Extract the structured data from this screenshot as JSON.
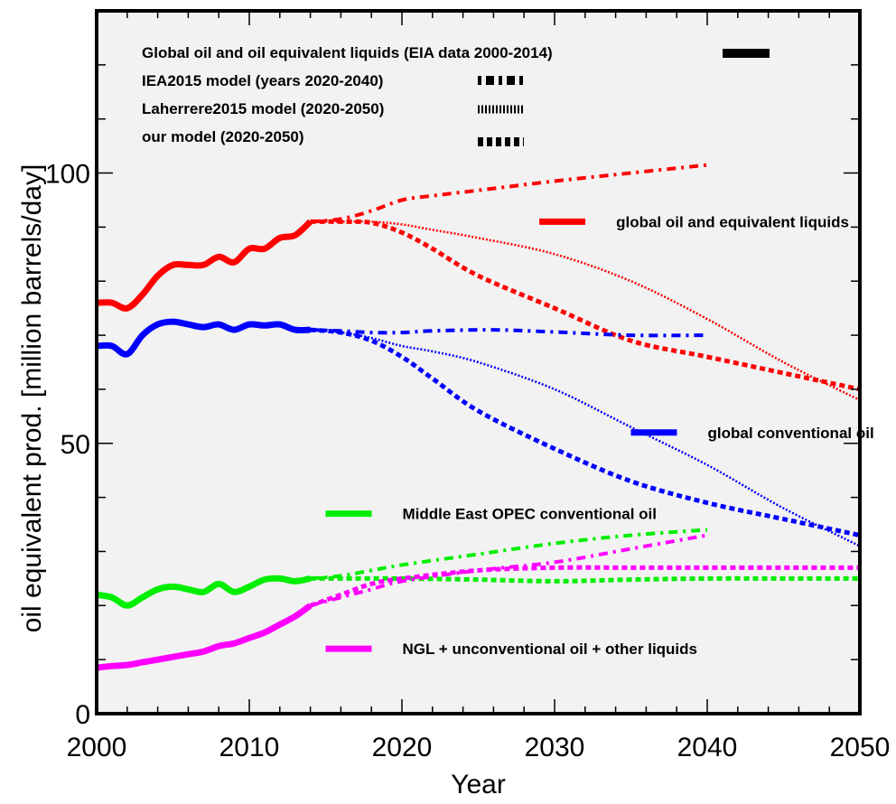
{
  "chart_data": {
    "type": "line",
    "title": "",
    "xlabel": "Year",
    "ylabel": "oil equivalent prod. [million barrels/day]",
    "xlim": [
      2000,
      2050
    ],
    "ylim": [
      0,
      130
    ],
    "x_ticks": [
      2000,
      2010,
      2020,
      2030,
      2040,
      2050
    ],
    "y_ticks": [
      0,
      50,
      100
    ],
    "grid": false,
    "background_color": "#f2f2f2",
    "legend": {
      "placement": "top",
      "entries": [
        {
          "label": "Global oil and oil equivalent liquids (EIA data 2000-2014)",
          "style": "solid"
        },
        {
          "label": "IEA2015 model (years 2020-2040)",
          "style": "dashdot"
        },
        {
          "label": "Laherrere2015 model (2020-2050)",
          "style": "dotted"
        },
        {
          "label": "our model (2020-2050)",
          "style": "dashed"
        }
      ]
    },
    "annotations": [
      {
        "text": "global oil and equivalent liquids",
        "color": "#ff0000",
        "x": 2029,
        "y": 91
      },
      {
        "text": "global conventional oil",
        "color": "#0000ff",
        "x": 2035,
        "y": 52
      },
      {
        "text": "Middle East OPEC conventional oil",
        "color": "#00ee00",
        "x": 2015,
        "y": 37
      },
      {
        "text": "NGL + unconventional oil + other liquids",
        "color": "#ff00ff",
        "x": 2015,
        "y": 12
      }
    ],
    "series": [
      {
        "group": "global oil and equivalent liquids",
        "model": "Global oil and oil equivalent liquids (EIA data 2000-2014)",
        "style": "solid",
        "color": "#ff0000",
        "x": [
          2000,
          2001,
          2002,
          2003,
          2004,
          2005,
          2006,
          2007,
          2008,
          2009,
          2010,
          2011,
          2012,
          2013,
          2014
        ],
        "y": [
          76,
          76,
          75,
          77.5,
          81,
          83,
          83,
          83,
          84.5,
          83.5,
          86,
          86,
          88,
          88.5,
          91
        ]
      },
      {
        "group": "global oil and equivalent liquids",
        "model": "IEA2015 model (years 2020-2040)",
        "style": "dashdot",
        "color": "#ff0000",
        "x": [
          2014,
          2016,
          2018,
          2020,
          2022,
          2025,
          2030,
          2035,
          2040
        ],
        "y": [
          91,
          91.5,
          93,
          95,
          95.8,
          96.8,
          98.5,
          100,
          101.5
        ]
      },
      {
        "group": "global oil and equivalent liquids",
        "model": "Laherrere2015 model (2020-2050)",
        "style": "dotted",
        "color": "#ff0000",
        "x": [
          2014,
          2016,
          2018,
          2020,
          2022,
          2025,
          2030,
          2035,
          2040,
          2045,
          2050
        ],
        "y": [
          91,
          91,
          91,
          90.5,
          89.5,
          88,
          85,
          80,
          73,
          65,
          58
        ]
      },
      {
        "group": "global oil and equivalent liquids",
        "model": "our model (2020-2050)",
        "style": "dashed",
        "color": "#ff0000",
        "x": [
          2014,
          2016,
          2018,
          2020,
          2022,
          2025,
          2030,
          2035,
          2040,
          2045,
          2050
        ],
        "y": [
          91,
          91,
          90.8,
          89,
          86,
          81,
          75,
          69,
          66,
          63,
          60
        ]
      },
      {
        "group": "global conventional oil",
        "model": "Global oil and oil equivalent liquids (EIA data 2000-2014)",
        "style": "solid",
        "color": "#0000ff",
        "x": [
          2000,
          2001,
          2002,
          2003,
          2004,
          2005,
          2006,
          2007,
          2008,
          2009,
          2010,
          2011,
          2012,
          2013,
          2014
        ],
        "y": [
          68,
          68,
          66.5,
          70,
          72,
          72.5,
          72,
          71.5,
          72,
          71,
          72,
          71.8,
          72,
          71,
          71
        ]
      },
      {
        "group": "global conventional oil",
        "model": "IEA2015 model (years 2020-2040)",
        "style": "dashdot",
        "color": "#0000ff",
        "x": [
          2014,
          2016,
          2018,
          2020,
          2022,
          2026,
          2030,
          2035,
          2040
        ],
        "y": [
          71,
          70.8,
          70.5,
          70.5,
          70.8,
          71,
          70.6,
          70,
          70
        ]
      },
      {
        "group": "global conventional oil",
        "model": "Laherrere2015 model (2020-2050)",
        "style": "dotted",
        "color": "#0000ff",
        "x": [
          2014,
          2016,
          2018,
          2020,
          2022,
          2025,
          2030,
          2035,
          2040,
          2045,
          2050
        ],
        "y": [
          71,
          70.5,
          69.5,
          68,
          67,
          65,
          60,
          53,
          46,
          38,
          31
        ]
      },
      {
        "group": "global conventional oil",
        "model": "our model (2020-2050)",
        "style": "dashed",
        "color": "#0000ff",
        "x": [
          2014,
          2016,
          2018,
          2020,
          2022,
          2025,
          2030,
          2035,
          2040,
          2045,
          2050
        ],
        "y": [
          71,
          70.5,
          69,
          66,
          62,
          56,
          49,
          43,
          39,
          36,
          33
        ]
      },
      {
        "group": "Middle East OPEC conventional oil",
        "model": "Global oil and oil equivalent liquids (EIA data 2000-2014)",
        "style": "solid",
        "color": "#00ee00",
        "x": [
          2000,
          2001,
          2002,
          2003,
          2004,
          2005,
          2006,
          2007,
          2008,
          2009,
          2010,
          2011,
          2012,
          2013,
          2014
        ],
        "y": [
          22,
          21.5,
          20,
          21.5,
          23,
          23.5,
          23,
          22.5,
          24,
          22.5,
          23.5,
          24.8,
          25,
          24.5,
          25
        ]
      },
      {
        "group": "Middle East OPEC conventional oil",
        "model": "IEA2015 model (years 2020-2040)",
        "style": "dashdot",
        "color": "#00ee00",
        "x": [
          2014,
          2016,
          2018,
          2020,
          2025,
          2030,
          2035,
          2040
        ],
        "y": [
          25,
          25.5,
          26.5,
          27.5,
          29.5,
          31.5,
          33,
          34
        ]
      },
      {
        "group": "Middle East OPEC conventional oil",
        "model": "our model (2020-2050)",
        "style": "dashed",
        "color": "#00ee00",
        "x": [
          2014,
          2016,
          2018,
          2020,
          2025,
          2030,
          2035,
          2040,
          2045,
          2050
        ],
        "y": [
          25,
          25,
          25,
          25,
          24.8,
          24.5,
          24.8,
          25,
          25,
          25
        ]
      },
      {
        "group": "NGL + unconventional oil + other liquids",
        "model": "Global oil and oil equivalent liquids (EIA data 2000-2014)",
        "style": "solid",
        "color": "#ff00ff",
        "x": [
          2000,
          2001,
          2002,
          2003,
          2004,
          2005,
          2006,
          2007,
          2008,
          2009,
          2010,
          2011,
          2012,
          2013,
          2014
        ],
        "y": [
          8.5,
          8.8,
          9,
          9.5,
          10,
          10.5,
          11,
          11.5,
          12.5,
          13,
          14,
          15,
          16.5,
          18,
          20
        ]
      },
      {
        "group": "NGL + unconventional oil + other liquids",
        "model": "IEA2015 model (years 2020-2040)",
        "style": "dashdot",
        "color": "#ff00ff",
        "x": [
          2014,
          2016,
          2018,
          2020,
          2025,
          2030,
          2035,
          2040
        ],
        "y": [
          20,
          21.5,
          23,
          24.5,
          26.5,
          28,
          30.5,
          33
        ]
      },
      {
        "group": "NGL + unconventional oil + other liquids",
        "model": "our model (2020-2050)",
        "style": "dashed",
        "color": "#ff00ff",
        "x": [
          2014,
          2016,
          2018,
          2020,
          2025,
          2030,
          2035,
          2040,
          2045,
          2050
        ],
        "y": [
          20,
          22,
          24,
          25,
          26.5,
          27,
          27,
          27,
          27,
          27
        ]
      }
    ]
  }
}
